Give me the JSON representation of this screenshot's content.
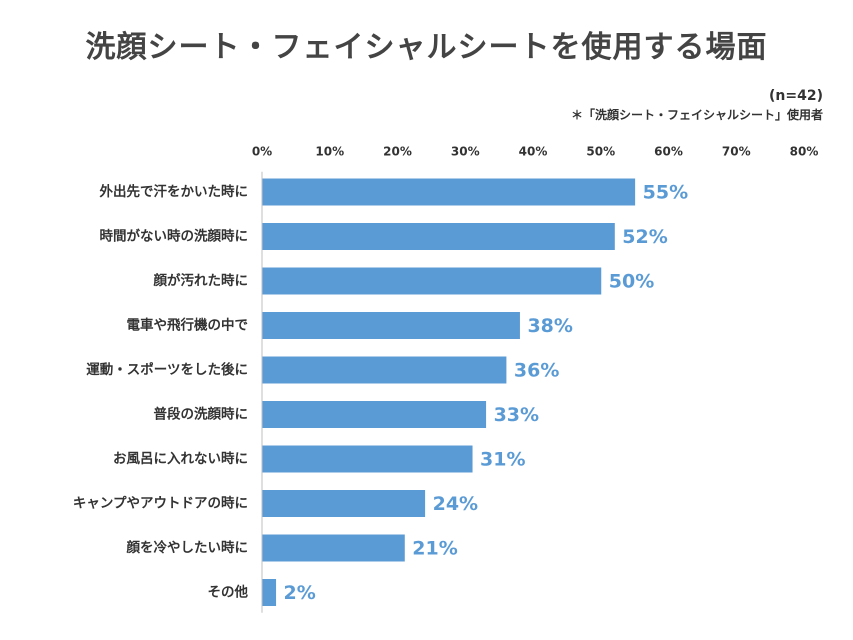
{
  "header": {
    "title": "洗顔シート・フェイシャルシートを使用する場面",
    "sample": "(n=42)",
    "note": "＊「洗顔シート・フェイシャルシート」使用者"
  },
  "colors": {
    "bar": "#5b9bd5",
    "value_label": "#5b9bd5",
    "axis": "#bfbfbf"
  },
  "chart_data": {
    "type": "bar",
    "orientation": "horizontal",
    "categories": [
      "外出先で汗をかいた時に",
      "時間がない時の洗顔時に",
      "顔が汚れた時に",
      "電車や飛行機の中で",
      "運動・スポーツをした後に",
      "普段の洗顔時に",
      "お風呂に入れない時に",
      "キャンプやアウトドアの時に",
      "顔を冷やしたい時に",
      "その他"
    ],
    "values": [
      55,
      52,
      50,
      38,
      36,
      33,
      31,
      24,
      21,
      2
    ],
    "value_labels": [
      "55%",
      "52%",
      "50%",
      "38%",
      "36%",
      "33%",
      "31%",
      "24%",
      "21%",
      "2%"
    ],
    "xlim": [
      0,
      80
    ],
    "ticks": [
      0,
      10,
      20,
      30,
      40,
      50,
      60,
      70,
      80
    ],
    "tick_labels": [
      "0%",
      "10%",
      "20%",
      "30%",
      "40%",
      "50%",
      "60%",
      "70%",
      "80%"
    ],
    "axis_position": "top",
    "grid": false,
    "legend": "none"
  }
}
